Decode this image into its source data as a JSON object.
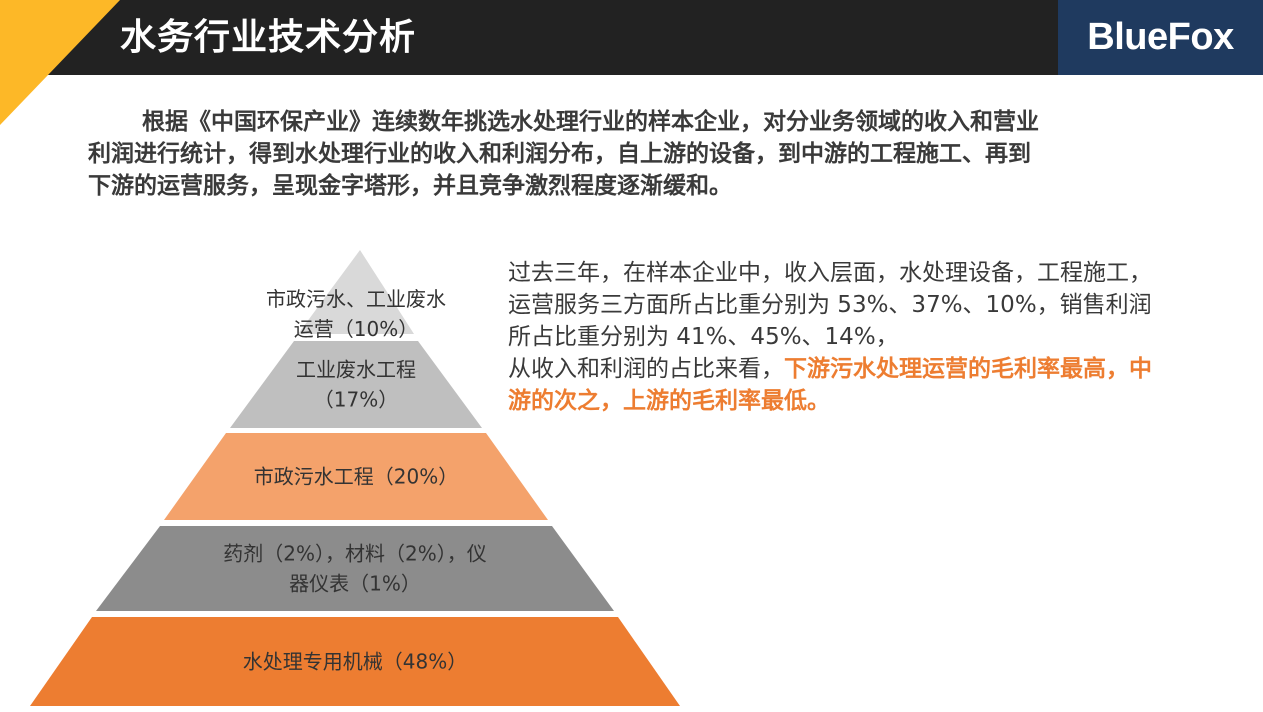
{
  "header": {
    "title": "水务行业技术分析",
    "logo_text": "BlueFox",
    "accent_color": "#fdb827",
    "bar_color": "#222222",
    "logo_bg": "#1f3a5f"
  },
  "intro": {
    "lines": [
      "根据《中国环保产业》连续数年挑选水处理行业的样本企业，对分业务领域的收入和营业",
      "利润进行统计，得到水处理行业的收入和利润分布，自上游的设备，到中游的工程施工、再到",
      "下游的运营服务，呈现金字塔形，并且竞争激烈程度逐渐缓和。"
    ]
  },
  "pyramid": {
    "tiers": [
      {
        "lines": [
          "市政污水、工业废水",
          "运营（10%）"
        ],
        "color": "#d9d9d9"
      },
      {
        "lines": [
          "工业废水工程",
          "（17%）"
        ],
        "color": "#bfbfbf"
      },
      {
        "lines": [
          "市政污水工程（20%）"
        ],
        "color": "#f4a26b"
      },
      {
        "lines": [
          "药剂（2%），材料（2%），仪",
          "器仪表（1%）"
        ],
        "color": "#8c8c8c"
      },
      {
        "lines": [
          "水处理专用机械（48%）"
        ],
        "color": "#ed7d31"
      }
    ]
  },
  "side": {
    "lines": [
      "过去三年，在样本企业中，收入层面，水处理设备，工程施工，",
      "运营服务三方面所占比重分别为 53%、37%、10%，销售利润",
      "所占比重分别为 41%、45%、14%，"
    ],
    "line4_prefix": "从收入和利润的占比来看，",
    "line4_emph": "下游污水处理运营的毛利率最高，中",
    "line5_emph": "游的次之，上游的毛利率最低。",
    "emph_color": "#ed7d31"
  }
}
